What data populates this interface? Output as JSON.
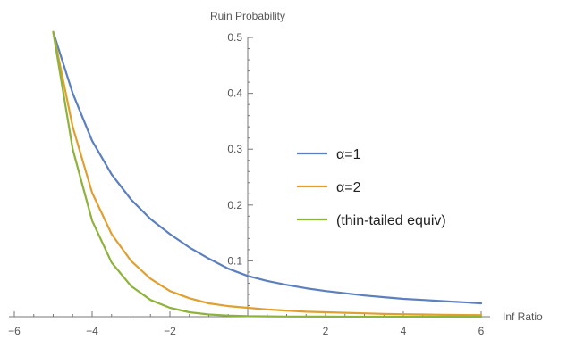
{
  "chart_data": {
    "type": "line",
    "title": "",
    "xlabel": "Inf Ratio",
    "ylabel": "Ruin Probability",
    "xlim": [
      -6.2,
      6.0
    ],
    "ylim": [
      0,
      0.54
    ],
    "x_ticks": [
      -6,
      -4,
      -2,
      2,
      4,
      6
    ],
    "x_tick_labels": [
      "−6",
      "−4",
      "−2",
      "2",
      "4",
      "6"
    ],
    "y_ticks": [
      0.1,
      0.2,
      0.3,
      0.4,
      0.5
    ],
    "y_tick_labels": [
      "0.1",
      "0.2",
      "0.3",
      "0.4",
      "0.5"
    ],
    "grid": false,
    "legend_position": "right",
    "series": [
      {
        "name": "α=1",
        "color": "#5b7fbf",
        "x": [
          -5,
          -4.5,
          -4,
          -3.5,
          -3,
          -2.5,
          -2,
          -1.5,
          -1,
          -0.5,
          0,
          0.5,
          1,
          1.5,
          2,
          2.5,
          3,
          3.5,
          4,
          4.5,
          5,
          5.5,
          6
        ],
        "y": [
          0.51,
          0.4,
          0.315,
          0.255,
          0.21,
          0.175,
          0.148,
          0.124,
          0.104,
          0.086,
          0.073,
          0.064,
          0.057,
          0.051,
          0.046,
          0.042,
          0.038,
          0.035,
          0.032,
          0.03,
          0.028,
          0.026,
          0.024
        ]
      },
      {
        "name": "α=2",
        "color": "#e0a030",
        "x": [
          -5,
          -4.5,
          -4,
          -3.5,
          -3,
          -2.5,
          -2,
          -1.5,
          -1,
          -0.5,
          0,
          0.5,
          1,
          1.5,
          2,
          2.5,
          3,
          3.5,
          4,
          4.5,
          5,
          5.5,
          6
        ],
        "y": [
          0.51,
          0.34,
          0.222,
          0.148,
          0.1,
          0.068,
          0.046,
          0.033,
          0.024,
          0.019,
          0.016,
          0.013,
          0.011,
          0.009,
          0.008,
          0.007,
          0.006,
          0.005,
          0.0045,
          0.004,
          0.0035,
          0.003,
          0.0028
        ]
      },
      {
        "name": "(thin-tailed equiv)",
        "color": "#8db33a",
        "x": [
          -5,
          -4.5,
          -4,
          -3.5,
          -3,
          -2.5,
          -2,
          -1.5,
          -1,
          -0.5,
          0,
          0.5,
          1,
          2,
          3,
          4,
          5,
          6
        ],
        "y": [
          0.51,
          0.3,
          0.172,
          0.097,
          0.055,
          0.03,
          0.016,
          0.008,
          0.004,
          0.002,
          0.001,
          0.0006,
          0.0003,
          0.0001,
          0,
          0,
          0,
          0
        ]
      }
    ]
  }
}
